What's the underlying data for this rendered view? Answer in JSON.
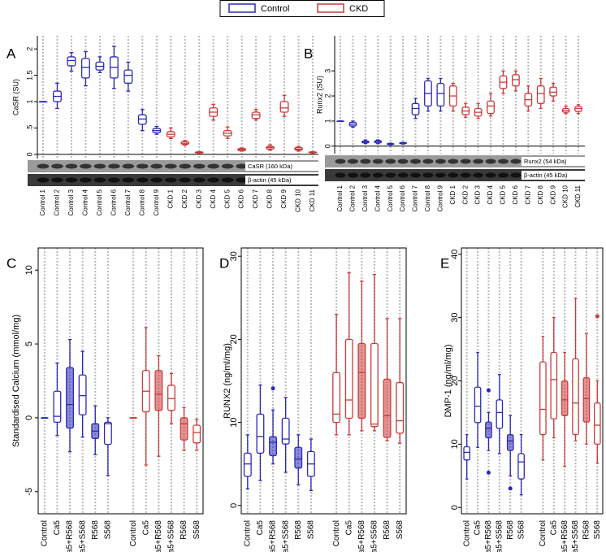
{
  "chart_data": [
    {
      "type": "box",
      "panel": "A",
      "y_label": "CaSR (SU)",
      "ylim": [
        -0.08,
        2.25
      ],
      "yticks": [
        0,
        {
          "value": 0.5,
          "label": ".5"
        },
        1,
        1.5,
        2
      ],
      "grid": true,
      "blots": [
        "CaSR (160 kDa)",
        "β-actin (45 kDa)"
      ],
      "categories": [
        "Control 1",
        "Control 2",
        "Control 3",
        "Control 4",
        "Control 5",
        "Control 6",
        "Control 7",
        "Control 8",
        "Control 9",
        "CKD 1",
        "CKD 2",
        "CKD 3",
        "CKD 4",
        "CKD 5",
        "CKD 6",
        "CKD 7",
        "CKD 8",
        "CKD 9",
        "CKD 10",
        "CKD 11"
      ],
      "series": [
        {
          "name": "Control",
          "color": "#2a2ab8",
          "boxes": [
            {
              "min": 1,
              "q1": 1,
              "median": 1,
              "q3": 1,
              "max": 1
            },
            {
              "min": 0.87,
              "q1": 1.0,
              "median": 1.1,
              "q3": 1.2,
              "max": 1.35
            },
            {
              "min": 1.58,
              "q1": 1.68,
              "median": 1.78,
              "q3": 1.85,
              "max": 1.93
            },
            {
              "min": 1.3,
              "q1": 1.45,
              "median": 1.65,
              "q3": 1.82,
              "max": 1.95
            },
            {
              "min": 1.55,
              "q1": 1.6,
              "median": 1.67,
              "q3": 1.75,
              "max": 1.85
            },
            {
              "min": 1.25,
              "q1": 1.45,
              "median": 1.65,
              "q3": 1.85,
              "max": 2.05
            },
            {
              "min": 1.2,
              "q1": 1.35,
              "median": 1.5,
              "q3": 1.6,
              "max": 1.75
            },
            {
              "min": 0.45,
              "q1": 0.57,
              "median": 0.67,
              "q3": 0.75,
              "max": 0.85
            },
            {
              "min": 0.38,
              "q1": 0.41,
              "median": 0.45,
              "q3": 0.49,
              "max": 0.53
            }
          ]
        },
        {
          "name": "CKD",
          "color": "#cc3a3a",
          "boxes": [
            {
              "min": 0.3,
              "q1": 0.33,
              "median": 0.38,
              "q3": 0.43,
              "max": 0.5
            },
            {
              "min": 0.17,
              "q1": 0.19,
              "median": 0.21,
              "q3": 0.24,
              "max": 0.26
            },
            {
              "min": 0.02,
              "q1": 0.025,
              "median": 0.03,
              "q3": 0.045,
              "max": 0.05
            },
            {
              "min": 0.65,
              "q1": 0.72,
              "median": 0.8,
              "q3": 0.88,
              "max": 0.95
            },
            {
              "min": 0.3,
              "q1": 0.35,
              "median": 0.4,
              "q3": 0.45,
              "max": 0.52
            },
            {
              "min": 0.06,
              "q1": 0.07,
              "median": 0.09,
              "q3": 0.11,
              "max": 0.12
            },
            {
              "min": 0.65,
              "q1": 0.68,
              "median": 0.75,
              "q3": 0.8,
              "max": 0.85
            },
            {
              "min": 0.08,
              "q1": 0.1,
              "median": 0.13,
              "q3": 0.15,
              "max": 0.18
            },
            {
              "min": 0.72,
              "q1": 0.8,
              "median": 0.88,
              "q3": 1.0,
              "max": 1.12
            },
            {
              "min": 0.06,
              "q1": 0.08,
              "median": 0.1,
              "q3": 0.13,
              "max": 0.15
            },
            {
              "min": 0.02,
              "q1": 0.03,
              "median": 0.035,
              "q3": 0.045,
              "max": 0.05
            }
          ]
        }
      ]
    },
    {
      "type": "box",
      "panel": "B",
      "y_label": "Runx2 (SU)",
      "ylim": [
        -0.3,
        4.4
      ],
      "yticks": [
        0,
        1,
        2,
        3
      ],
      "grid": true,
      "blots": [
        "Runx2 (54 kDa)",
        "β-actin (45 kDa)"
      ],
      "categories": [
        "Control 1",
        "Control 2",
        "Control 3",
        "Control 4",
        "Control 5",
        "Control 6",
        "Control 7",
        "Control 8",
        "Control 9",
        "CKD 1",
        "CKD 2",
        "CKD 3",
        "CKD 4",
        "CKD 5",
        "CKD 6",
        "CKD 7",
        "CKD 8",
        "CKD 9",
        "CKD 10",
        "CKD 11"
      ],
      "series": [
        {
          "name": "Control",
          "color": "#2a2ab8",
          "boxes": [
            {
              "min": 1,
              "q1": 1,
              "median": 1,
              "q3": 1,
              "max": 1
            },
            {
              "min": 0.75,
              "q1": 0.8,
              "median": 0.87,
              "q3": 0.95,
              "max": 1.0
            },
            {
              "min": 0.1,
              "q1": 0.13,
              "median": 0.17,
              "q3": 0.2,
              "max": 0.25
            },
            {
              "min": 0.1,
              "q1": 0.13,
              "median": 0.18,
              "q3": 0.22,
              "max": 0.25
            },
            {
              "min": 0.05,
              "q1": 0.07,
              "median": 0.08,
              "q3": 0.1,
              "max": 0.12
            },
            {
              "min": 0.08,
              "q1": 0.1,
              "median": 0.12,
              "q3": 0.14,
              "max": 0.15
            },
            {
              "min": 1.1,
              "q1": 1.25,
              "median": 1.5,
              "q3": 1.7,
              "max": 1.9
            },
            {
              "min": 1.4,
              "q1": 1.6,
              "median": 2.1,
              "q3": 2.6,
              "max": 2.7
            },
            {
              "min": 1.4,
              "q1": 1.6,
              "median": 2.1,
              "q3": 2.5,
              "max": 2.7
            }
          ]
        },
        {
          "name": "CKD",
          "color": "#cc3a3a",
          "boxes": [
            {
              "min": 1.4,
              "q1": 1.6,
              "median": 2.0,
              "q3": 2.4,
              "max": 2.5
            },
            {
              "min": 1.15,
              "q1": 1.25,
              "median": 1.4,
              "q3": 1.55,
              "max": 1.7
            },
            {
              "min": 1.1,
              "q1": 1.2,
              "median": 1.35,
              "q3": 1.5,
              "max": 1.7
            },
            {
              "min": 1.2,
              "q1": 1.3,
              "median": 1.6,
              "q3": 1.8,
              "max": 2.1
            },
            {
              "min": 2.1,
              "q1": 2.3,
              "median": 2.55,
              "q3": 2.8,
              "max": 3.0
            },
            {
              "min": 2.2,
              "q1": 2.4,
              "median": 2.65,
              "q3": 2.85,
              "max": 3.0
            },
            {
              "min": 1.4,
              "q1": 1.6,
              "median": 1.85,
              "q3": 2.1,
              "max": 2.4
            },
            {
              "min": 1.5,
              "q1": 1.7,
              "median": 2.1,
              "q3": 2.4,
              "max": 2.7
            },
            {
              "min": 1.8,
              "q1": 2.0,
              "median": 2.15,
              "q3": 2.35,
              "max": 2.5
            },
            {
              "min": 1.3,
              "q1": 1.35,
              "median": 1.42,
              "q3": 1.5,
              "max": 1.6
            },
            {
              "min": 1.3,
              "q1": 1.38,
              "median": 1.5,
              "q3": 1.58,
              "max": 1.65
            }
          ]
        }
      ]
    },
    {
      "type": "box",
      "panel": "C",
      "y_label": "Standardised Calcium (mmol/mg)",
      "ylim": [
        -6.5,
        11.5
      ],
      "yticks": [
        -5,
        0,
        5,
        10
      ],
      "grid": true,
      "categories": [
        "Control",
        "Ca5",
        "Ca5+R568",
        "Ca5+S568",
        "R568",
        "S568",
        "Control",
        "Ca5",
        "Ca5+R568",
        "Ca5+S568",
        "R568",
        "S568"
      ],
      "series": [
        {
          "name": "Control",
          "color": "#2a2ab8",
          "boxes": [
            {
              "min": 0,
              "q1": 0,
              "median": 0,
              "q3": 0,
              "max": 0
            },
            {
              "min": -1.2,
              "q1": -0.3,
              "median": 0.1,
              "q3": 1.8,
              "max": 3.7
            },
            {
              "min": -2.3,
              "q1": -0.7,
              "median": 0.9,
              "q3": 3.4,
              "max": 5.3,
              "filled": true
            },
            {
              "min": -1.3,
              "q1": 0.2,
              "median": 1.5,
              "q3": 2.9,
              "max": 4.5
            },
            {
              "min": -2.5,
              "q1": -1.4,
              "median": -0.9,
              "q3": -0.4,
              "max": 0.8,
              "filled": true
            },
            {
              "min": -3.9,
              "q1": -1.8,
              "median": -0.4,
              "q3": -0.3,
              "max": 0
            }
          ]
        },
        {
          "name": "CKD",
          "color": "#cc3a3a",
          "boxes": [
            {
              "min": 0,
              "q1": 0,
              "median": 0,
              "q3": 0,
              "max": 0
            },
            {
              "min": -3.2,
              "q1": 0.4,
              "median": 1.8,
              "q3": 3.2,
              "max": 6.1
            },
            {
              "min": -2.6,
              "q1": 0.5,
              "median": 1.6,
              "q3": 3.2,
              "max": 4.2,
              "filled": true
            },
            {
              "min": -0.4,
              "q1": 0.5,
              "median": 1.3,
              "q3": 2.2,
              "max": 3.0
            },
            {
              "min": -2.2,
              "q1": -1.5,
              "median": -0.4,
              "q3": 0,
              "max": 0.7,
              "filled": true
            },
            {
              "min": -2.2,
              "q1": -1.7,
              "median": -1.0,
              "q3": -0.5,
              "max": -0.1
            }
          ]
        }
      ]
    },
    {
      "type": "box",
      "panel": "D",
      "y_label": "RUNX2 (ng/ml/mg)",
      "ylim": [
        -1,
        31
      ],
      "yticks": [
        0,
        10,
        20,
        30
      ],
      "grid": true,
      "categories": [
        "Control",
        "Ca5",
        "Ca5+R568",
        "Ca5+S568",
        "R568",
        "S568",
        "Control",
        "Ca5",
        "Ca5+R568",
        "Ca5+S568",
        "R568",
        "S568"
      ],
      "series": [
        {
          "name": "Control",
          "color": "#2a2ab8",
          "boxes": [
            {
              "min": 2,
              "q1": 3.5,
              "median": 5,
              "q3": 6.3,
              "max": 8.5
            },
            {
              "min": 3,
              "q1": 6.3,
              "median": 8.3,
              "q3": 11,
              "max": 14.5
            },
            {
              "min": 5,
              "q1": 6,
              "median": 7.6,
              "q3": 8.3,
              "max": 11.5,
              "filled": true,
              "outliers": [
                14.1
              ]
            },
            {
              "min": 4,
              "q1": 7.4,
              "median": 8,
              "q3": 10.5,
              "max": 13
            },
            {
              "min": 2.5,
              "q1": 4.5,
              "median": 5.6,
              "q3": 7,
              "max": 8.5,
              "filled": true
            },
            {
              "min": 1.8,
              "q1": 3.5,
              "median": 5,
              "q3": 6.5,
              "max": 8
            }
          ]
        },
        {
          "name": "CKD",
          "color": "#cc3a3a",
          "boxes": [
            {
              "min": 8.5,
              "q1": 10,
              "median": 11,
              "q3": 16,
              "max": 23
            },
            {
              "min": 8.5,
              "q1": 10.5,
              "median": 12.7,
              "q3": 20,
              "max": 28
            },
            {
              "min": 9,
              "q1": 10.5,
              "median": 16,
              "q3": 19.5,
              "max": 27,
              "filled": true
            },
            {
              "min": 9,
              "q1": 9.5,
              "median": 9.8,
              "q3": 19.5,
              "max": 27.8
            },
            {
              "min": 7.8,
              "q1": 8.2,
              "median": 10.8,
              "q3": 15.2,
              "max": 22.5,
              "filled": true
            },
            {
              "min": 7.5,
              "q1": 8.7,
              "median": 10.2,
              "q3": 14.8,
              "max": 22.5
            }
          ]
        }
      ]
    },
    {
      "type": "box",
      "panel": "E",
      "y_label": "DMP-1 (ng/ml/mg)",
      "ylim": [
        -1,
        41
      ],
      "yticks": [
        0,
        10,
        20,
        30,
        40
      ],
      "grid": true,
      "categories": [
        "Control",
        "Ca5",
        "Ca5+R568",
        "Ca5+S568",
        "R568",
        "S568",
        "Control",
        "Ca5",
        "Ca5+R568",
        "Ca5+S568",
        "R568",
        "S568"
      ],
      "series": [
        {
          "name": "Control",
          "color": "#2a2ab8",
          "boxes": [
            {
              "min": 4.5,
              "q1": 7.5,
              "median": 8.7,
              "q3": 9.6,
              "max": 11.5
            },
            {
              "min": 9.5,
              "q1": 13.4,
              "median": 16,
              "q3": 19,
              "max": 24.5
            },
            {
              "min": 9,
              "q1": 11,
              "median": 12.5,
              "q3": 13.5,
              "max": 15,
              "filled": true,
              "outliers": [
                18.5,
                5.5
              ]
            },
            {
              "min": 8.5,
              "q1": 12.5,
              "median": 15,
              "q3": 17,
              "max": 21
            },
            {
              "min": 5,
              "q1": 9,
              "median": 10.5,
              "q3": 11.5,
              "max": 14.5,
              "filled": true,
              "outliers": [
                3
              ]
            },
            {
              "min": 2,
              "q1": 4.5,
              "median": 7.2,
              "q3": 8.5,
              "max": 11.5
            }
          ]
        },
        {
          "name": "CKD",
          "color": "#cc3a3a",
          "boxes": [
            {
              "min": 7.5,
              "q1": 11.5,
              "median": 15.5,
              "q3": 23,
              "max": 27
            },
            {
              "min": 11,
              "q1": 14,
              "median": 20.2,
              "q3": 24.5,
              "max": 30
            },
            {
              "min": 6.5,
              "q1": 14.5,
              "median": 17,
              "q3": 20,
              "max": 24.5,
              "filled": true
            },
            {
              "min": 10.5,
              "q1": 11.5,
              "median": 16.5,
              "q3": 23.5,
              "max": 33
            },
            {
              "min": 10,
              "q1": 13.5,
              "median": 17.2,
              "q3": 20.5,
              "max": 27.5,
              "filled": true
            },
            {
              "min": 7,
              "q1": 10,
              "median": 13,
              "q3": 16.5,
              "max": 20,
              "outliers": [
                30.2
              ]
            }
          ]
        }
      ]
    }
  ]
}
